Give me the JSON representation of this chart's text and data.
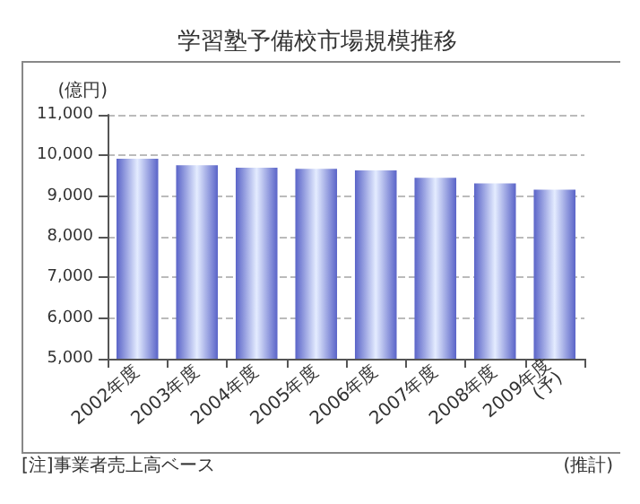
{
  "chart_data": {
    "type": "bar",
    "title": "学習塾予備校市場規模推移",
    "ylabel": "(億円)",
    "categories": [
      "2002年度",
      "2003年度",
      "2004年度",
      "2005年度",
      "2006年度",
      "2007年度",
      "2008年度",
      "2009年度\n(予)"
    ],
    "values": [
      9920,
      9760,
      9700,
      9670,
      9630,
      9450,
      9310,
      9160
    ],
    "color": "#5a64c8",
    "ylim": [
      5000,
      11000
    ],
    "yticks": [
      {
        "value": 5000,
        "label": "5,000"
      },
      {
        "value": 6000,
        "label": "6,000"
      },
      {
        "value": 7000,
        "label": "7,000"
      },
      {
        "value": 8000,
        "label": "8,000"
      },
      {
        "value": 9000,
        "label": "9,000"
      },
      {
        "value": 10000,
        "label": "10,000"
      },
      {
        "value": 11000,
        "label": "11,000"
      }
    ],
    "grid": "y",
    "annotations": [
      "[注]事業者売上高ベース",
      "(推計)"
    ]
  }
}
